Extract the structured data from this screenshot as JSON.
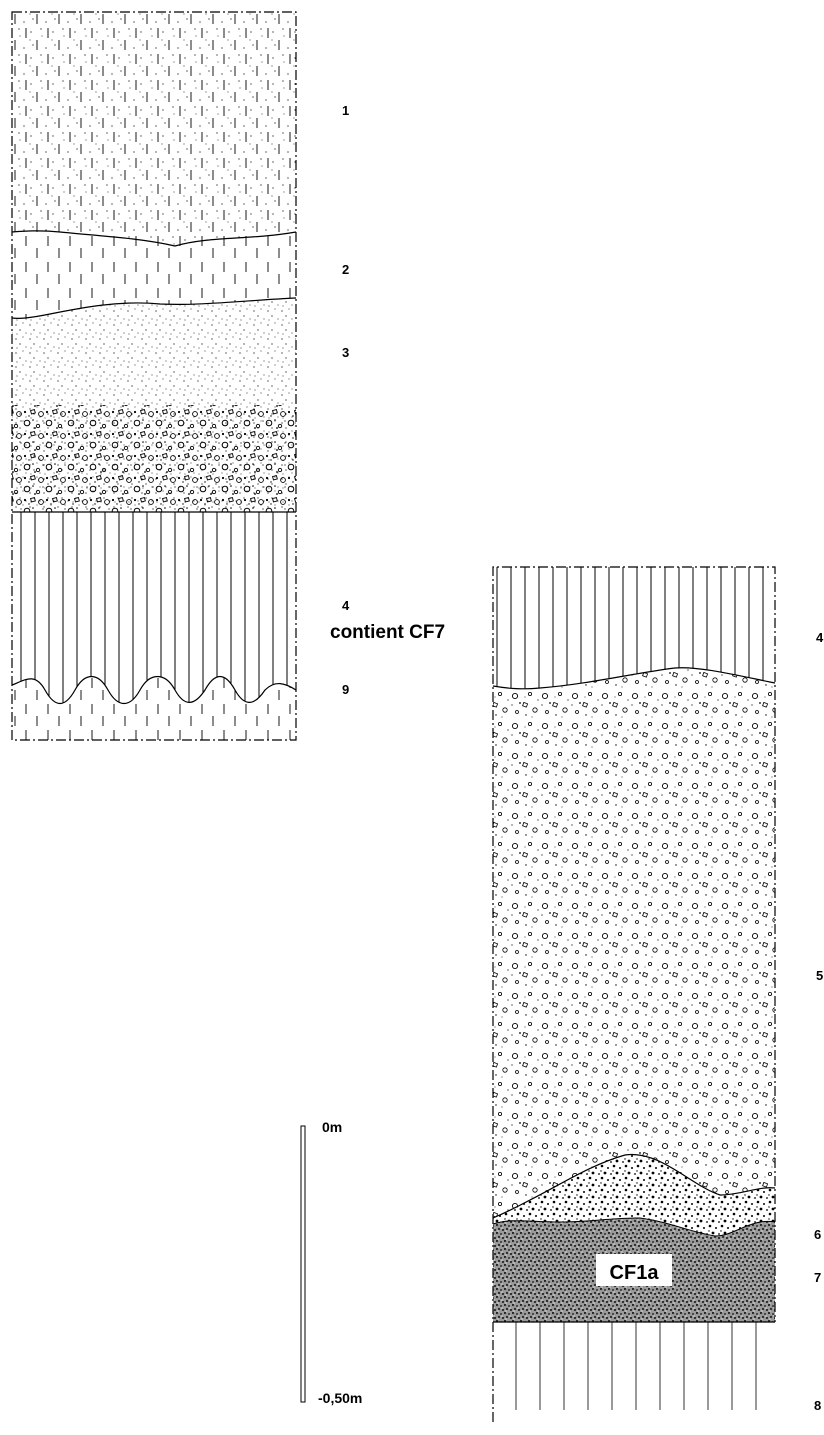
{
  "left_column": {
    "layers": [
      {
        "id": "1",
        "label": "1"
      },
      {
        "id": "2",
        "label": "2"
      },
      {
        "id": "3",
        "label": "3"
      },
      {
        "id": "4",
        "label": "4",
        "note": "contient CF7"
      },
      {
        "id": "9",
        "label": "9"
      }
    ]
  },
  "right_column": {
    "layers": [
      {
        "id": "4",
        "label": "4"
      },
      {
        "id": "5",
        "label": "5"
      },
      {
        "id": "6",
        "label": "6"
      },
      {
        "id": "7",
        "label": "7",
        "inset_label": "CF1a"
      },
      {
        "id": "8",
        "label": "8"
      }
    ]
  },
  "scale_bar": {
    "top_label": "0m",
    "bottom_label": "-0,50m"
  }
}
